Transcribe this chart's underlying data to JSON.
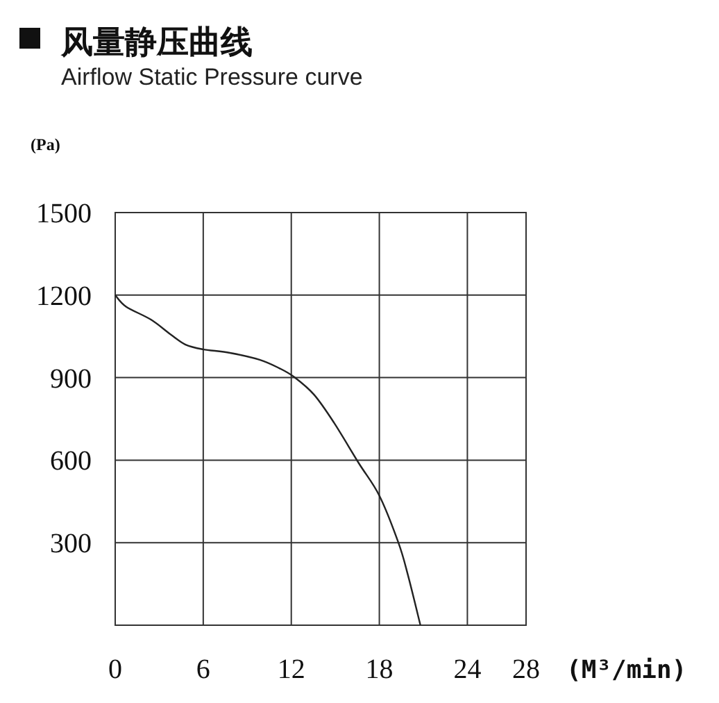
{
  "chart_data": {
    "type": "line",
    "title": "风量静压曲线",
    "subtitle": "Airflow Static Pressure curve",
    "xlabel": "(M³/min)",
    "ylabel": "(Pa)",
    "x": [
      0,
      0.74,
      2.43,
      3.78,
      4.79,
      5.97,
      7.82,
      9.84,
      11.19,
      12.2,
      13.55,
      14.9,
      16.6,
      18.0,
      19.3,
      19.95,
      20.8
    ],
    "series": [
      {
        "color": "#222222",
        "values": [
          1200,
          1158,
          1111,
          1057,
          1020,
          1003,
          990,
          965,
          934,
          902,
          838,
          737,
          589,
          471,
          300,
          182,
          0
        ]
      }
    ],
    "xlim": [
      0,
      28
    ],
    "xticks": [
      0,
      6,
      12,
      18,
      24,
      28
    ],
    "ylim": [
      0,
      1500
    ],
    "yticks": [
      {
        "value": 0,
        "label": null
      },
      300,
      600,
      900,
      1200,
      1500
    ],
    "grid": true,
    "marker": "none",
    "line_style": "solid"
  }
}
